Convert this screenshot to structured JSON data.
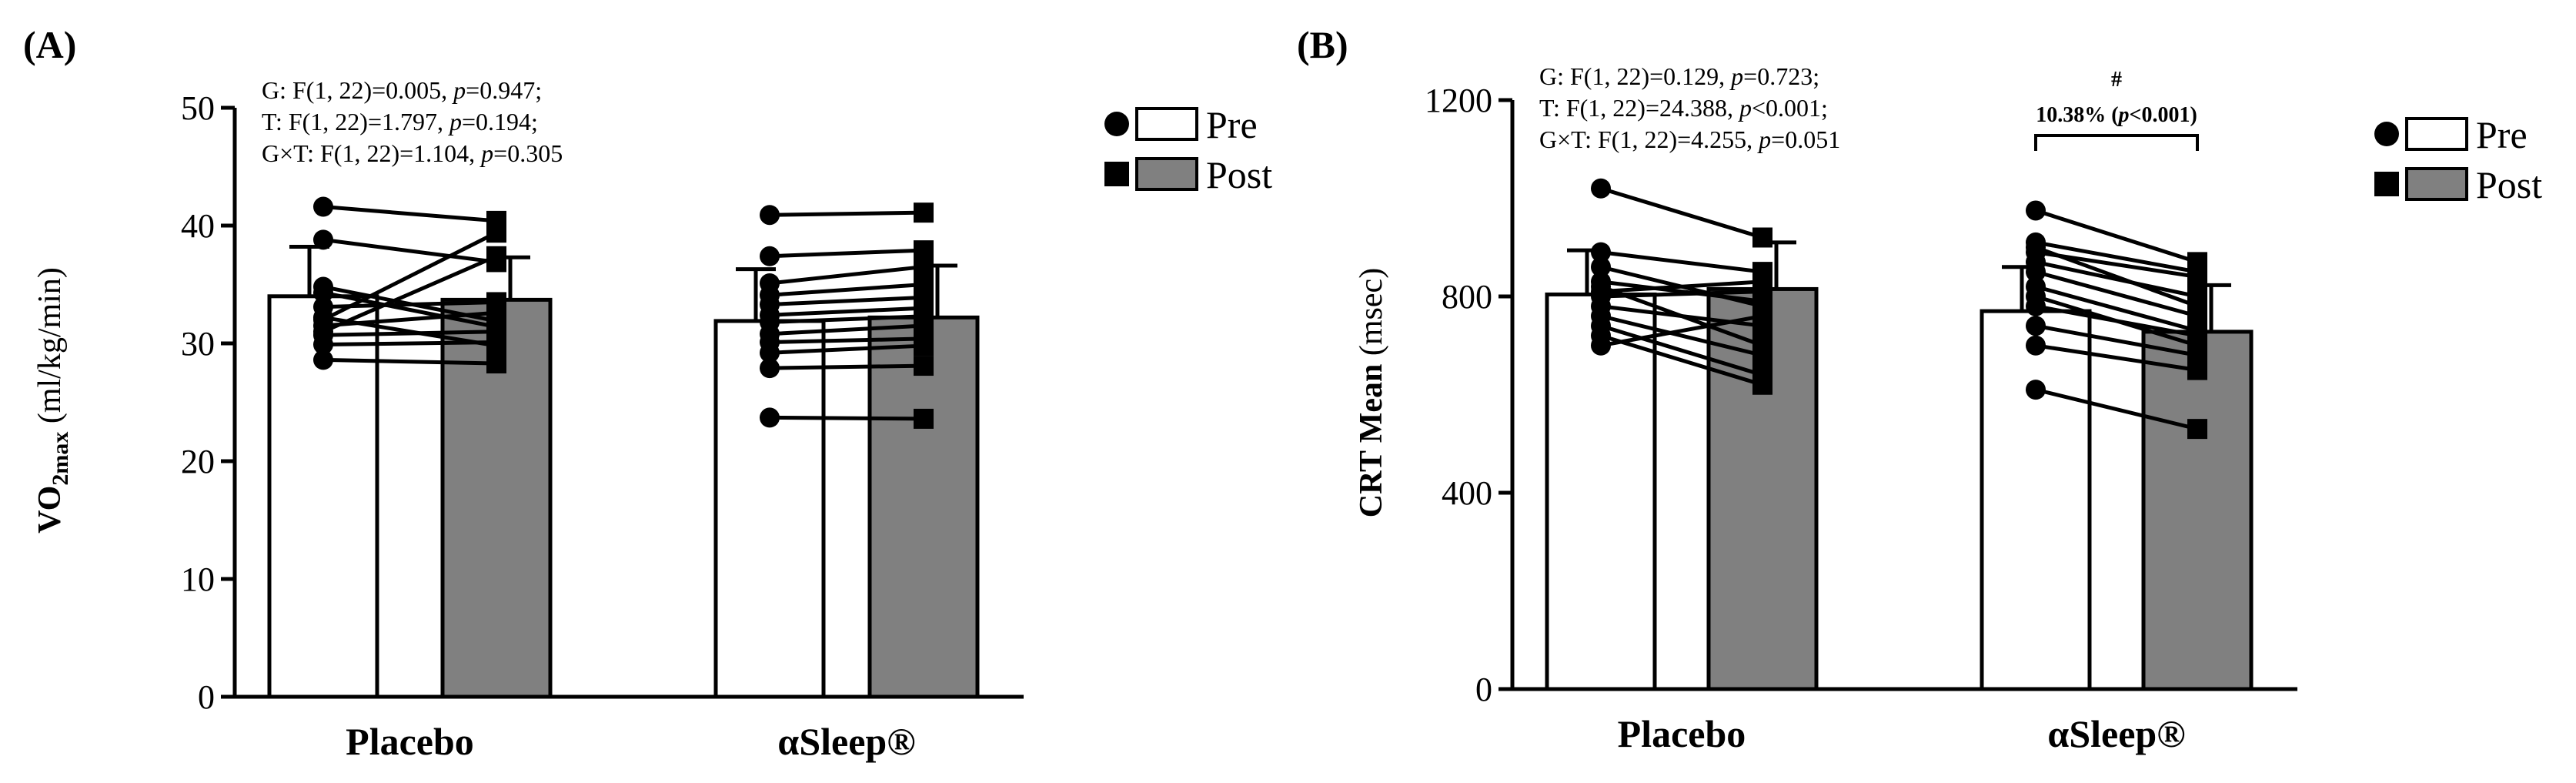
{
  "chart_data": [
    {
      "panel": "(A)",
      "type": "bar",
      "ylabel": {
        "main": "VO",
        "sub": "2max",
        "rest": " (ml/kg/min)"
      },
      "ylim": [
        0,
        50
      ],
      "yticks": [
        "0",
        "10",
        "20",
        "30",
        "40",
        "50"
      ],
      "categories": [
        "Placebo",
        "αSleep®"
      ],
      "series": [
        {
          "name": "Pre",
          "values": [
            34.0,
            31.9
          ],
          "sd": [
            4.2,
            4.4
          ],
          "fill": "#ffffff"
        },
        {
          "name": "Post",
          "values": [
            33.7,
            32.2
          ],
          "sd": [
            3.6,
            4.4
          ],
          "fill": "#808080"
        }
      ],
      "individuals": [
        [
          [
            41.6,
            40.4
          ],
          [
            38.8,
            36.9
          ],
          [
            34.8,
            31.9
          ],
          [
            33.1,
            33.5
          ],
          [
            32.2,
            29.8
          ],
          [
            31.5,
            32.6
          ],
          [
            30.7,
            31.0
          ],
          [
            28.6,
            28.3
          ],
          [
            32.0,
            39.4
          ],
          [
            31.0,
            37.4
          ],
          [
            34.3,
            31.4
          ],
          [
            29.9,
            30.1
          ]
        ],
        [
          [
            40.9,
            41.1
          ],
          [
            37.4,
            37.9
          ],
          [
            35.1,
            36.5
          ],
          [
            34.1,
            35.0
          ],
          [
            33.3,
            33.9
          ],
          [
            32.4,
            33.0
          ],
          [
            31.8,
            32.3
          ],
          [
            30.8,
            31.5
          ],
          [
            30.1,
            30.4
          ],
          [
            29.2,
            29.8
          ],
          [
            27.9,
            28.1
          ],
          [
            23.7,
            23.6
          ]
        ]
      ],
      "stats": [
        {
          "pre": "G: F(1, 22)=0.005, ",
          "p": "p",
          "post": "=0.947;"
        },
        {
          "pre": "T: F(1, 22)=1.797, ",
          "p": "p",
          "post": "=0.194;"
        },
        {
          "pre": "G×T: F(1, 22)=1.104, ",
          "p": "p",
          "post": "=0.305"
        }
      ],
      "legend": [
        "Pre",
        "Post"
      ]
    },
    {
      "panel": "(B)",
      "type": "bar",
      "ylabel": {
        "main": "CRT Mean",
        "sub": "",
        "rest": " (msec)"
      },
      "ylim": [
        0,
        1200
      ],
      "yticks": [
        "0",
        "400",
        "800",
        "1200"
      ],
      "categories": [
        "Placebo",
        "αSleep®"
      ],
      "series": [
        {
          "name": "Pre",
          "values": [
            804,
            770
          ],
          "sd": [
            90,
            90
          ],
          "fill": "#ffffff"
        },
        {
          "name": "Post",
          "values": [
            815,
            728
          ],
          "sd": [
            95,
            95
          ],
          "fill": "#808080"
        }
      ],
      "individuals": [
        [
          [
            1020,
            920
          ],
          [
            890,
            850
          ],
          [
            860,
            780
          ],
          [
            830,
            790
          ],
          [
            820,
            700
          ],
          [
            800,
            810
          ],
          [
            780,
            740
          ],
          [
            760,
            680
          ],
          [
            740,
            640
          ],
          [
            720,
            620
          ],
          [
            700,
            760
          ],
          [
            810,
            830
          ]
        ],
        [
          [
            975,
            870
          ],
          [
            910,
            850
          ],
          [
            890,
            840
          ],
          [
            870,
            800
          ],
          [
            850,
            760
          ],
          [
            820,
            730
          ],
          [
            800,
            700
          ],
          [
            780,
            720
          ],
          [
            740,
            680
          ],
          [
            700,
            650
          ],
          [
            610,
            530
          ],
          [
            900,
            780
          ]
        ]
      ],
      "stats": [
        {
          "pre": "G: F(1, 22)=0.129, ",
          "p": "p",
          "post": "=0.723;"
        },
        {
          "pre": "T: F(1, 22)=24.388, ",
          "p": "p",
          "post": "<0.001;"
        },
        {
          "pre": "G×T: F(1, 22)=4.255, ",
          "p": "p",
          "post": "=0.051"
        }
      ],
      "annotation": {
        "symbol": "#",
        "text_pre": "10.38% (",
        "p": "p",
        "text_post": "<0.001)"
      },
      "legend": [
        "Pre",
        "Post"
      ]
    }
  ]
}
